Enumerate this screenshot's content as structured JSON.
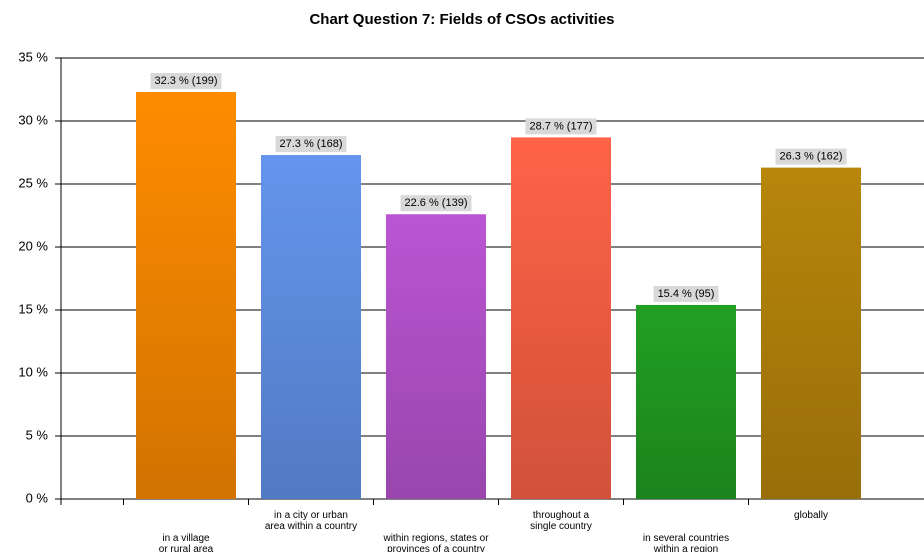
{
  "chart_data": {
    "type": "bar",
    "title": "Chart Question 7:   Fields of CSOs activities",
    "categories": [
      "in a village\nor rural area",
      "in a city or urban\narea within a country",
      "within regions, states or\nprovinces of a country",
      "throughout a\nsingle country",
      "in several countries\nwithin a region",
      "globally"
    ],
    "values": [
      32.3,
      27.3,
      22.6,
      28.7,
      15.4,
      26.3
    ],
    "value_labels": [
      "32.3 % (199)",
      "27.3 % (168)",
      "22.6 % (139)",
      "28.7 % (177)",
      "15.4 % (95)",
      "26.3 % (162)"
    ],
    "colors": [
      "#ff8c00",
      "#6495ed",
      "#ba55d3",
      "#ff6347",
      "#22a022",
      "#b8860b"
    ],
    "ylim": [
      0,
      35
    ],
    "yticks": [
      {
        "value": 0,
        "label": "0 %"
      },
      {
        "value": 5,
        "label": "5 %"
      },
      {
        "value": 10,
        "label": "10 %"
      },
      {
        "value": 15,
        "label": "15 %"
      },
      {
        "value": 20,
        "label": "20 %"
      },
      {
        "value": 25,
        "label": "25 %"
      },
      {
        "value": 30,
        "label": "30 %"
      },
      {
        "value": 35,
        "label": "35 %"
      }
    ],
    "grid": true
  }
}
